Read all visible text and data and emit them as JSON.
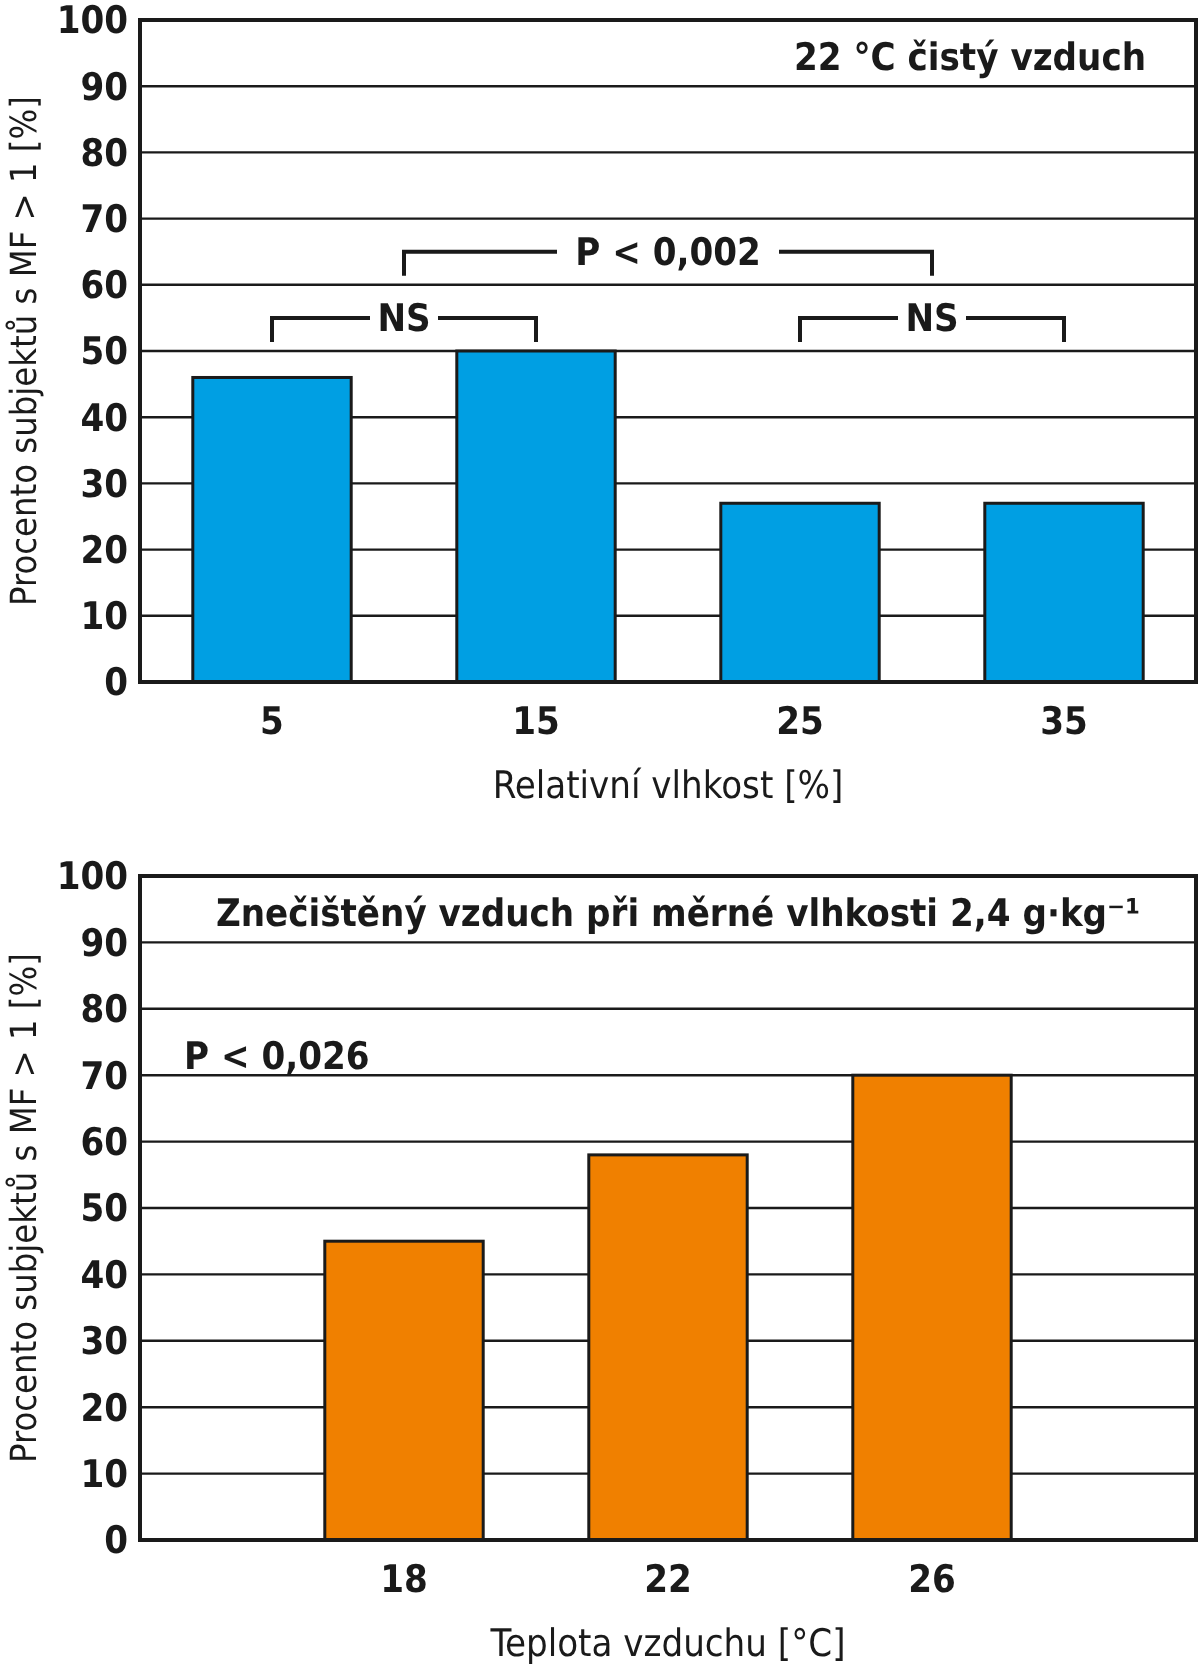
{
  "chart_data": [
    {
      "type": "bar",
      "title": "22 °C  čistý vzduch",
      "categories": [
        "5",
        "15",
        "25",
        "35"
      ],
      "values": [
        46,
        50,
        27,
        27
      ],
      "color": "#009fe3",
      "ylim": [
        0,
        100
      ],
      "yticks": [
        0,
        10,
        20,
        30,
        40,
        50,
        60,
        70,
        80,
        90,
        100
      ],
      "grid": "y",
      "xlabel": "Relativní vlhkost [%]",
      "ylabel": "Procento subjektů s MF > 1 [%]",
      "annotations": [
        "NS",
        "P < 0,002",
        "NS"
      ]
    },
    {
      "type": "bar",
      "title": "Znečištěný vzduch při měrné vlhkosti 2,4 g·kg⁻¹",
      "x": [
        18,
        22,
        26
      ],
      "xlim": [
        14,
        30
      ],
      "xticks": [
        18,
        22,
        26
      ],
      "values": [
        45,
        58,
        70
      ],
      "color": "#f08000",
      "ylim": [
        0,
        100
      ],
      "yticks": [
        0,
        10,
        20,
        30,
        40,
        50,
        60,
        70,
        80,
        90,
        100
      ],
      "grid": "y",
      "xlabel": "Teplota vzduchu [°C]",
      "ylabel": "Procento subjektů s MF > 1 [%]",
      "annotations": [
        "P < 0,026"
      ]
    }
  ]
}
